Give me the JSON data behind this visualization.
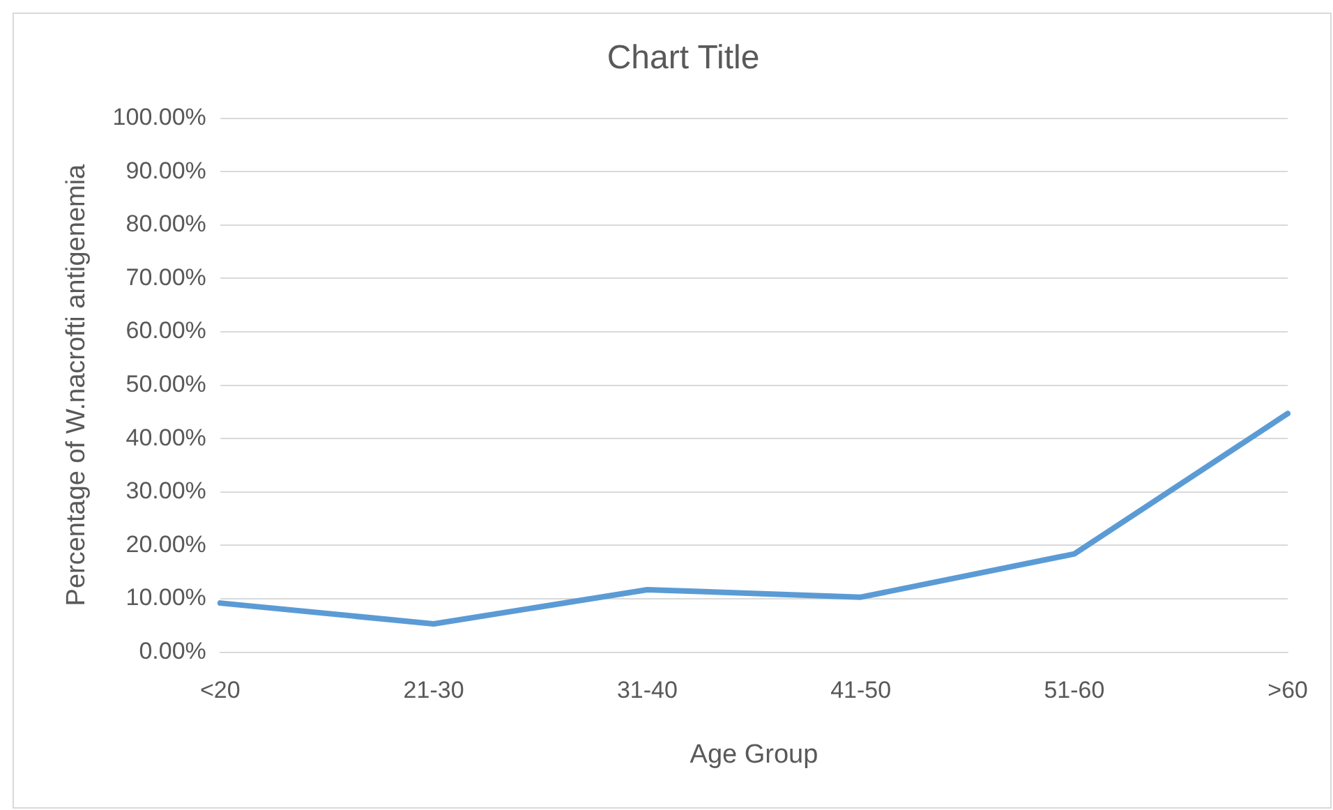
{
  "chart_data": {
    "type": "line",
    "title": "Chart Title",
    "xlabel": "Age Group",
    "ylabel": "Percentage of W.nacrofti antigenemia",
    "categories": [
      "<20",
      "21-30",
      "31-40",
      "41-50",
      "51-60",
      ">60"
    ],
    "series": [
      {
        "color": "#5b9bd5",
        "values": [
          9.2,
          5.3,
          11.7,
          10.3,
          18.4,
          44.7
        ]
      }
    ],
    "ylim": [
      0,
      100
    ],
    "yticks": [
      {
        "value": 0,
        "label": "0.00%"
      },
      {
        "value": 10,
        "label": "10.00%"
      },
      {
        "value": 20,
        "label": "20.00%"
      },
      {
        "value": 30,
        "label": "30.00%"
      },
      {
        "value": 40,
        "label": "40.00%"
      },
      {
        "value": 50,
        "label": "50.00%"
      },
      {
        "value": 60,
        "label": "60.00%"
      },
      {
        "value": 70,
        "label": "70.00%"
      },
      {
        "value": 80,
        "label": "80.00%"
      },
      {
        "value": 90,
        "label": "90.00%"
      },
      {
        "value": 100,
        "label": "100.00%"
      }
    ],
    "grid": "y",
    "legend": false,
    "marker": "none",
    "line_style": "solid"
  }
}
